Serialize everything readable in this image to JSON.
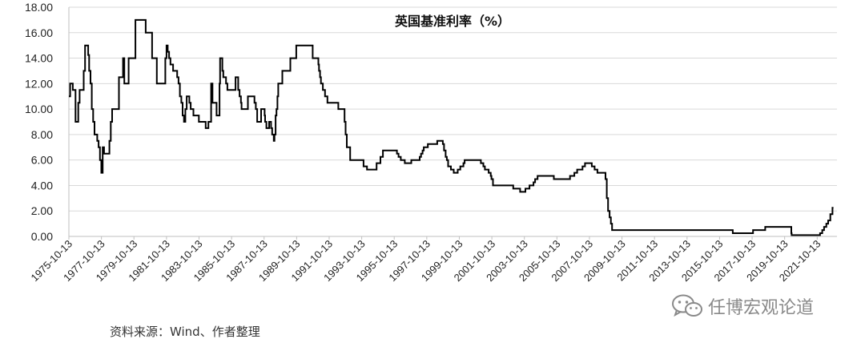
{
  "chart_data": {
    "type": "line",
    "title": "英国基准利率（%）",
    "xlabel": "",
    "ylabel": "",
    "ylim": [
      0,
      18
    ],
    "yticks": [
      "0.00",
      "2.00",
      "4.00",
      "6.00",
      "8.00",
      "10.00",
      "12.00",
      "14.00",
      "16.00",
      "18.00"
    ],
    "xtick_labels": [
      "1975-10-13",
      "1977-10-13",
      "1979-10-13",
      "1981-10-13",
      "1983-10-13",
      "1985-10-13",
      "1987-10-13",
      "1989-10-13",
      "1991-10-13",
      "1993-10-13",
      "1995-10-13",
      "1997-10-13",
      "1999-10-13",
      "2001-10-13",
      "2003-10-13",
      "2005-10-13",
      "2007-10-13",
      "2009-10-13",
      "2011-10-13",
      "2013-10-13",
      "2015-10-13",
      "2017-10-13",
      "2019-10-13",
      "2021-10-13"
    ],
    "grid": true,
    "legend": "none",
    "line_color": "#000000",
    "x_range": [
      "1975-10-13",
      "2022-12-31"
    ],
    "series": [
      {
        "values": [
          [
            "1975-10-13",
            11.0
          ],
          [
            "1975-11-10",
            12.0
          ],
          [
            "1976-01-10",
            11.5
          ],
          [
            "1976-03-10",
            9.0
          ],
          [
            "1976-04-20",
            9.0
          ],
          [
            "1976-05-10",
            10.5
          ],
          [
            "1976-06-10",
            11.5
          ],
          [
            "1976-09-10",
            13.0
          ],
          [
            "1976-10-10",
            15.0
          ],
          [
            "1976-12-20",
            14.25
          ],
          [
            "1977-01-10",
            13.0
          ],
          [
            "1977-02-10",
            12.0
          ],
          [
            "1977-03-10",
            10.0
          ],
          [
            "1977-04-10",
            9.0
          ],
          [
            "1977-05-10",
            8.0
          ],
          [
            "1977-07-10",
            7.5
          ],
          [
            "1977-08-10",
            7.0
          ],
          [
            "1977-09-10",
            6.0
          ],
          [
            "1977-10-10",
            5.0
          ],
          [
            "1977-11-10",
            7.0
          ],
          [
            "1977-12-10",
            6.5
          ],
          [
            "1978-03-10",
            6.5
          ],
          [
            "1978-04-10",
            7.5
          ],
          [
            "1978-05-10",
            9.0
          ],
          [
            "1978-06-10",
            10.0
          ],
          [
            "1978-11-10",
            12.5
          ],
          [
            "1979-02-10",
            14.0
          ],
          [
            "1979-03-10",
            12.0
          ],
          [
            "1979-04-10",
            12.0
          ],
          [
            "1979-06-15",
            14.0
          ],
          [
            "1979-11-15",
            17.0
          ],
          [
            "1980-07-03",
            16.0
          ],
          [
            "1980-11-24",
            14.0
          ],
          [
            "1981-03-10",
            12.0
          ],
          [
            "1981-09-16",
            14.0
          ],
          [
            "1981-10-13",
            15.0
          ],
          [
            "1981-11-10",
            14.5
          ],
          [
            "1981-12-10",
            14.0
          ],
          [
            "1982-01-10",
            13.5
          ],
          [
            "1982-03-10",
            13.0
          ],
          [
            "1982-06-10",
            12.5
          ],
          [
            "1982-07-10",
            12.0
          ],
          [
            "1982-08-10",
            11.0
          ],
          [
            "1982-09-10",
            10.5
          ],
          [
            "1982-10-10",
            9.5
          ],
          [
            "1982-11-10",
            9.0
          ],
          [
            "1982-12-10",
            10.0
          ],
          [
            "1983-01-10",
            11.0
          ],
          [
            "1983-03-10",
            10.5
          ],
          [
            "1983-04-10",
            10.0
          ],
          [
            "1983-06-10",
            9.5
          ],
          [
            "1983-10-10",
            9.0
          ],
          [
            "1984-03-10",
            8.5
          ],
          [
            "1984-04-10",
            8.5
          ],
          [
            "1984-05-10",
            9.0
          ],
          [
            "1984-07-10",
            12.0
          ],
          [
            "1984-08-10",
            10.5
          ],
          [
            "1984-11-10",
            9.5
          ],
          [
            "1985-01-15",
            12.0
          ],
          [
            "1985-01-28",
            14.0
          ],
          [
            "1985-03-20",
            13.0
          ],
          [
            "1985-04-10",
            12.5
          ],
          [
            "1985-06-10",
            12.0
          ],
          [
            "1985-07-10",
            11.5
          ],
          [
            "1986-01-10",
            12.5
          ],
          [
            "1986-03-10",
            11.5
          ],
          [
            "1986-04-10",
            11.0
          ],
          [
            "1986-05-10",
            10.5
          ],
          [
            "1986-05-25",
            10.0
          ],
          [
            "1986-10-14",
            11.0
          ],
          [
            "1987-03-10",
            10.5
          ],
          [
            "1987-04-10",
            10.0
          ],
          [
            "1987-05-11",
            9.0
          ],
          [
            "1987-08-07",
            10.0
          ],
          [
            "1987-10-26",
            9.5
          ],
          [
            "1987-11-05",
            9.0
          ],
          [
            "1987-12-04",
            8.5
          ],
          [
            "1988-02-02",
            9.0
          ],
          [
            "1988-03-17",
            8.5
          ],
          [
            "1988-04-11",
            8.0
          ],
          [
            "1988-05-18",
            7.5
          ],
          [
            "1988-06-03",
            8.0
          ],
          [
            "1988-06-28",
            9.5
          ],
          [
            "1988-07-18",
            10.0
          ],
          [
            "1988-08-08",
            11.0
          ],
          [
            "1988-08-25",
            12.0
          ],
          [
            "1988-11-25",
            13.0
          ],
          [
            "1989-05-24",
            14.0
          ],
          [
            "1989-10-05",
            15.0
          ],
          [
            "1990-10-08",
            14.0
          ],
          [
            "1991-02-13",
            13.5
          ],
          [
            "1991-02-27",
            13.0
          ],
          [
            "1991-03-22",
            12.5
          ],
          [
            "1991-04-12",
            12.0
          ],
          [
            "1991-05-24",
            11.5
          ],
          [
            "1991-07-12",
            11.0
          ],
          [
            "1991-09-04",
            10.5
          ],
          [
            "1992-05-05",
            10.0
          ],
          [
            "1992-09-22",
            9.0
          ],
          [
            "1992-10-16",
            8.0
          ],
          [
            "1992-11-13",
            7.0
          ],
          [
            "1993-01-26",
            6.0
          ],
          [
            "1993-11-23",
            5.5
          ],
          [
            "1994-02-08",
            5.25
          ],
          [
            "1994-09-12",
            5.75
          ],
          [
            "1994-12-07",
            6.25
          ],
          [
            "1995-02-02",
            6.75
          ],
          [
            "1995-12-13",
            6.5
          ],
          [
            "1996-01-18",
            6.25
          ],
          [
            "1996-03-08",
            6.0
          ],
          [
            "1996-06-06",
            5.75
          ],
          [
            "1996-10-30",
            6.0
          ],
          [
            "1997-05-06",
            6.25
          ],
          [
            "1997-06-06",
            6.5
          ],
          [
            "1997-07-10",
            6.75
          ],
          [
            "1997-08-07",
            7.0
          ],
          [
            "1997-11-06",
            7.25
          ],
          [
            "1998-06-04",
            7.5
          ],
          [
            "1998-10-08",
            7.25
          ],
          [
            "1998-11-05",
            6.75
          ],
          [
            "1998-12-10",
            6.25
          ],
          [
            "1999-01-07",
            6.0
          ],
          [
            "1999-02-04",
            5.5
          ],
          [
            "1999-04-08",
            5.25
          ],
          [
            "1999-06-10",
            5.0
          ],
          [
            "1999-09-08",
            5.25
          ],
          [
            "1999-11-04",
            5.5
          ],
          [
            "2000-01-13",
            5.75
          ],
          [
            "2000-02-10",
            6.0
          ],
          [
            "2001-02-08",
            5.75
          ],
          [
            "2001-04-05",
            5.5
          ],
          [
            "2001-05-10",
            5.25
          ],
          [
            "2001-08-02",
            5.0
          ],
          [
            "2001-09-18",
            4.75
          ],
          [
            "2001-10-04",
            4.5
          ],
          [
            "2001-11-08",
            4.0
          ],
          [
            "2003-02-06",
            3.75
          ],
          [
            "2003-07-10",
            3.5
          ],
          [
            "2003-11-06",
            3.75
          ],
          [
            "2004-02-05",
            4.0
          ],
          [
            "2004-05-06",
            4.25
          ],
          [
            "2004-06-10",
            4.5
          ],
          [
            "2004-08-05",
            4.75
          ],
          [
            "2005-08-04",
            4.5
          ],
          [
            "2006-08-03",
            4.75
          ],
          [
            "2006-11-09",
            5.0
          ],
          [
            "2007-01-11",
            5.25
          ],
          [
            "2007-05-10",
            5.5
          ],
          [
            "2007-07-05",
            5.75
          ],
          [
            "2007-12-06",
            5.5
          ],
          [
            "2008-02-07",
            5.25
          ],
          [
            "2008-04-10",
            5.0
          ],
          [
            "2008-10-08",
            4.5
          ],
          [
            "2008-11-06",
            3.0
          ],
          [
            "2008-12-04",
            2.0
          ],
          [
            "2009-01-08",
            1.5
          ],
          [
            "2009-02-05",
            1.0
          ],
          [
            "2009-03-05",
            0.5
          ],
          [
            "2016-08-04",
            0.25
          ],
          [
            "2017-11-02",
            0.5
          ],
          [
            "2018-08-02",
            0.75
          ],
          [
            "2020-03-11",
            0.25
          ],
          [
            "2020-03-19",
            0.1
          ],
          [
            "2021-12-16",
            0.25
          ],
          [
            "2022-02-03",
            0.5
          ],
          [
            "2022-03-17",
            0.75
          ],
          [
            "2022-05-05",
            1.0
          ],
          [
            "2022-06-16",
            1.25
          ],
          [
            "2022-08-04",
            1.75
          ],
          [
            "2022-09-22",
            2.25
          ],
          [
            "2022-10-13",
            2.25
          ]
        ]
      }
    ]
  },
  "footer": {
    "source": "资料来源：Wind、作者整理",
    "watermark": "任博宏观论道",
    "watermark_icon": "wechat-icon"
  }
}
